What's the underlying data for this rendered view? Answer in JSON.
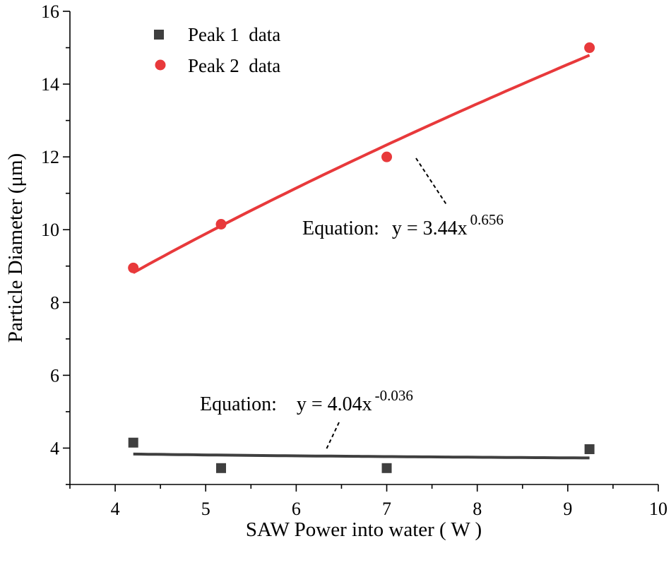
{
  "chart_data": {
    "type": "scatter",
    "xlabel": "SAW Power into water ( W )",
    "ylabel": "Particle Diameter (μm)",
    "xlim": [
      3.5,
      10
    ],
    "ylim": [
      3,
      16
    ],
    "xticks": [
      4,
      5,
      6,
      7,
      8,
      9,
      10
    ],
    "yticks": [
      4,
      6,
      8,
      10,
      12,
      14,
      16
    ],
    "legend_position": "top-left",
    "series": [
      {
        "name": "Peak 1  data",
        "marker": "square",
        "color": "#3f3f3f",
        "points": [
          {
            "x": 4.2,
            "y": 4.15
          },
          {
            "x": 5.17,
            "y": 3.45
          },
          {
            "x": 7.0,
            "y": 3.45
          },
          {
            "x": 9.24,
            "y": 3.97
          }
        ],
        "fit": {
          "a": 4.04,
          "b": -0.036,
          "x_range": [
            4.2,
            9.24
          ],
          "color": "#3f3f3f",
          "label_prefix": "Equation:",
          "label_lhs": "y = 4.04x",
          "label_exp": "-0.036"
        }
      },
      {
        "name": "Peak 2  data",
        "marker": "circle",
        "color": "#e8393b",
        "points": [
          {
            "x": 4.2,
            "y": 8.95
          },
          {
            "x": 5.17,
            "y": 10.15
          },
          {
            "x": 7.0,
            "y": 12.0
          },
          {
            "x": 9.24,
            "y": 15.0
          }
        ],
        "fit": {
          "a": 3.44,
          "b": 0.656,
          "x_range": [
            4.2,
            9.24
          ],
          "color": "#e8393b",
          "label_prefix": "Equation:",
          "label_lhs": "y = 3.44x",
          "label_exp": "0.656"
        }
      }
    ]
  }
}
